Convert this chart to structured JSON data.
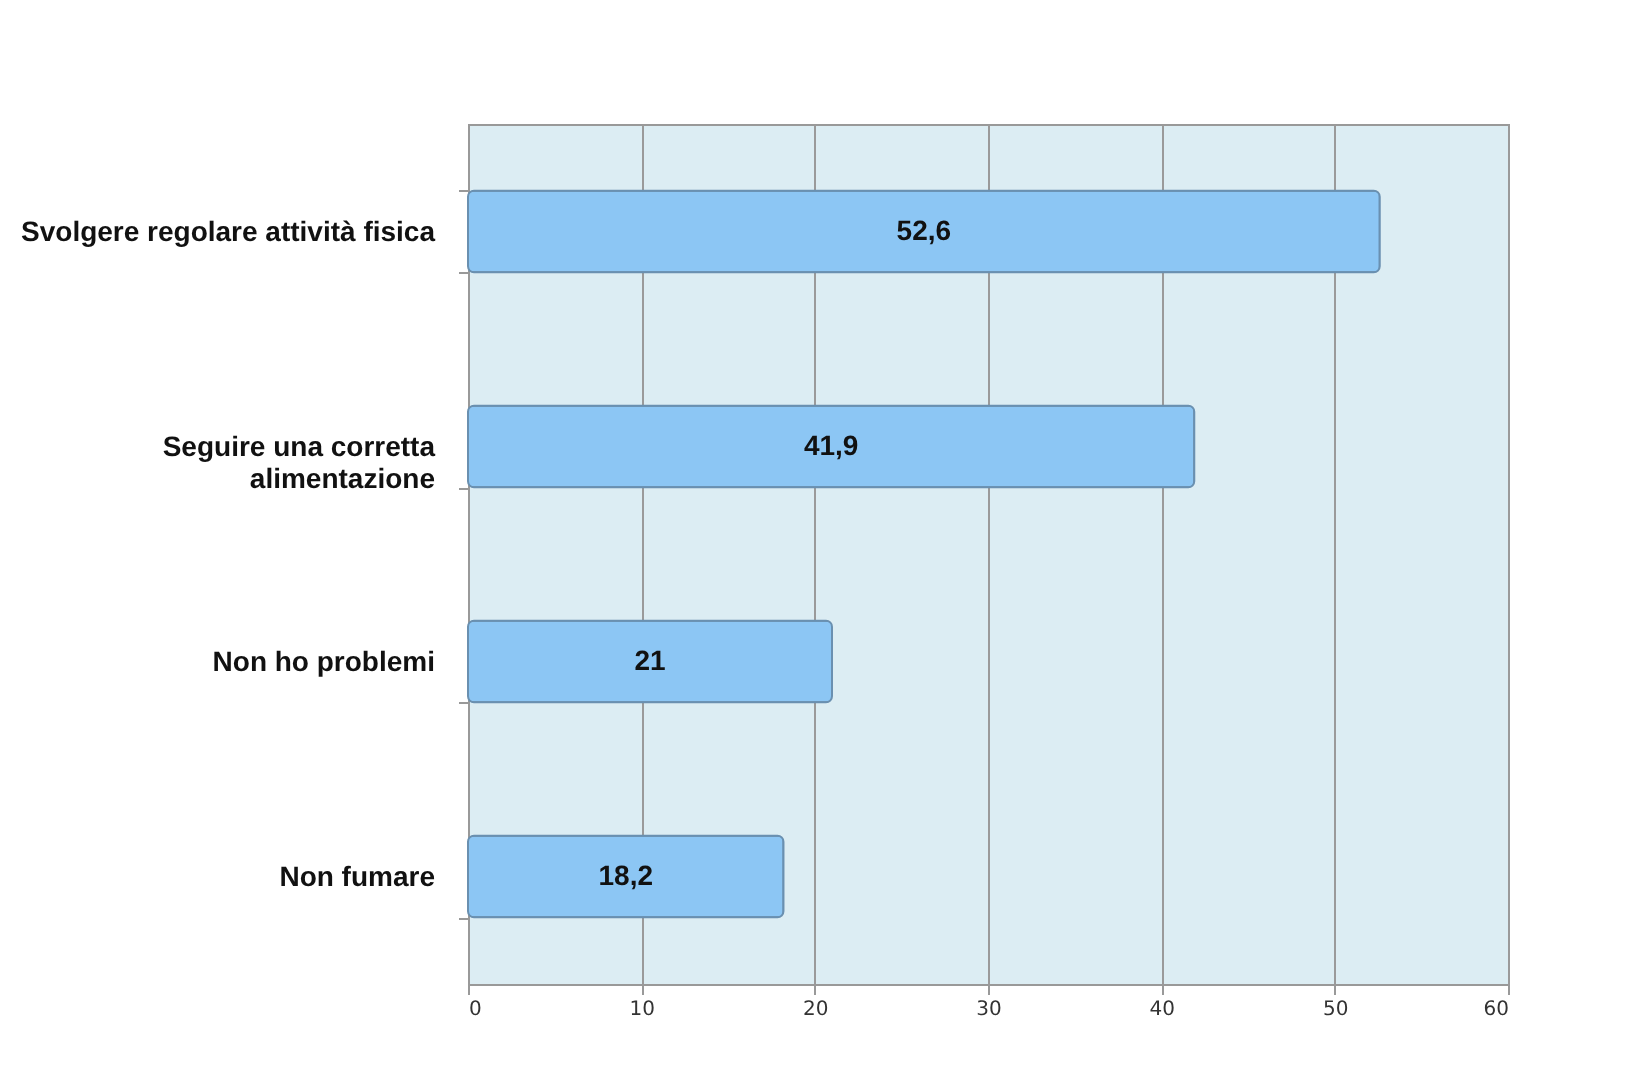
{
  "chart_data": {
    "type": "bar",
    "orientation": "horizontal",
    "categories": [
      "Svolgere regolare attività fisica",
      "Seguire una corretta alimentazione",
      "Non ho problemi",
      "Non fumare"
    ],
    "values": [
      52.6,
      41.9,
      21,
      18.2
    ],
    "color": "#8cc6f4",
    "value_labels": [
      "52,6",
      "41,9",
      "21",
      "18,2"
    ],
    "xlim": [
      0,
      60
    ],
    "xticks": [
      0,
      10,
      20,
      30,
      40,
      50,
      60
    ],
    "grid": "x"
  }
}
